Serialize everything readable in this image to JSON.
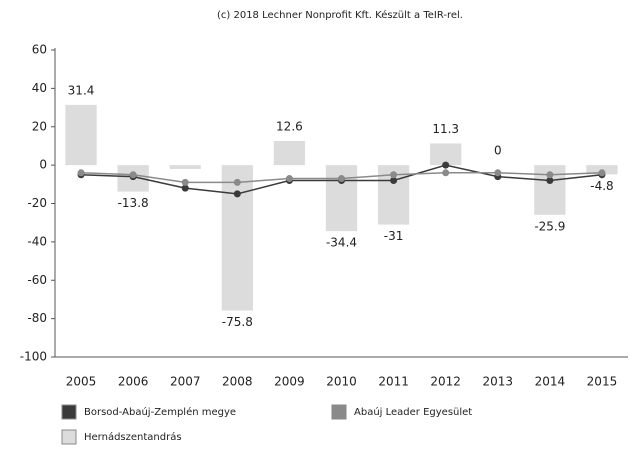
{
  "chart_data": {
    "type": "combo",
    "title": "(c) 2018 Lechner Nonprofit Kft. Készült a TeIR-rel.",
    "categories": [
      "2005",
      "2006",
      "2007",
      "2008",
      "2009",
      "2010",
      "2011",
      "2012",
      "2013",
      "2014",
      "2015"
    ],
    "series": [
      {
        "name": "Borsod-Abaúj-Zemplén megye",
        "mark": "line",
        "color": "#3a3a3a",
        "values": [
          -5,
          -6,
          -12,
          -15,
          -8,
          -8,
          -8,
          0,
          -6,
          -8,
          -5
        ]
      },
      {
        "name": "Abaúj Leader Egyesület",
        "mark": "line",
        "color": "#8a8a8a",
        "values": [
          -4,
          -5,
          -9,
          -9,
          -7,
          -7,
          -5,
          -4,
          -4,
          -5,
          -4
        ]
      },
      {
        "name": "Hernádszentandrás",
        "mark": "bar",
        "color": "#dcdcdc",
        "values": [
          31.4,
          -13.8,
          -2,
          -75.8,
          12.6,
          -34.4,
          -31,
          11.3,
          0,
          -25.9,
          -4.8
        ],
        "value_labels": [
          "31.4",
          "-13.8",
          null,
          "-75.8",
          "12.6",
          "-34.4",
          "-31",
          "11.3",
          "0",
          "-25.9",
          "-4.8"
        ]
      }
    ],
    "ylim": [
      -100,
      60
    ],
    "yticks": [
      -100,
      -80,
      -60,
      -40,
      -20,
      0,
      20,
      40,
      60
    ],
    "grid": false
  }
}
